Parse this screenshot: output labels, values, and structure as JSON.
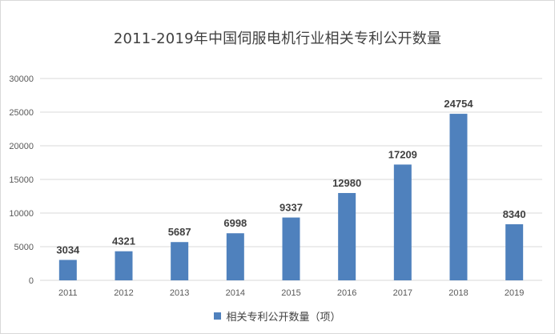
{
  "chart_data": {
    "type": "bar",
    "title": "2011-2019年中国伺服电机行业相关专利公开数量",
    "categories": [
      "2011",
      "2012",
      "2013",
      "2014",
      "2015",
      "2016",
      "2017",
      "2018",
      "2019"
    ],
    "series": [
      {
        "name": "相关专利公开数量（项）",
        "values": [
          3034,
          4321,
          5687,
          6998,
          9337,
          12980,
          17209,
          24754,
          8340
        ]
      }
    ],
    "ylim": [
      0,
      30000
    ],
    "yticks": [
      0,
      5000,
      10000,
      15000,
      20000,
      25000,
      30000
    ],
    "grid": true,
    "legend_position": "bottom",
    "data_labels": true,
    "bar_color": "#4f81bd",
    "gridline_color": "#d9d9d9"
  }
}
